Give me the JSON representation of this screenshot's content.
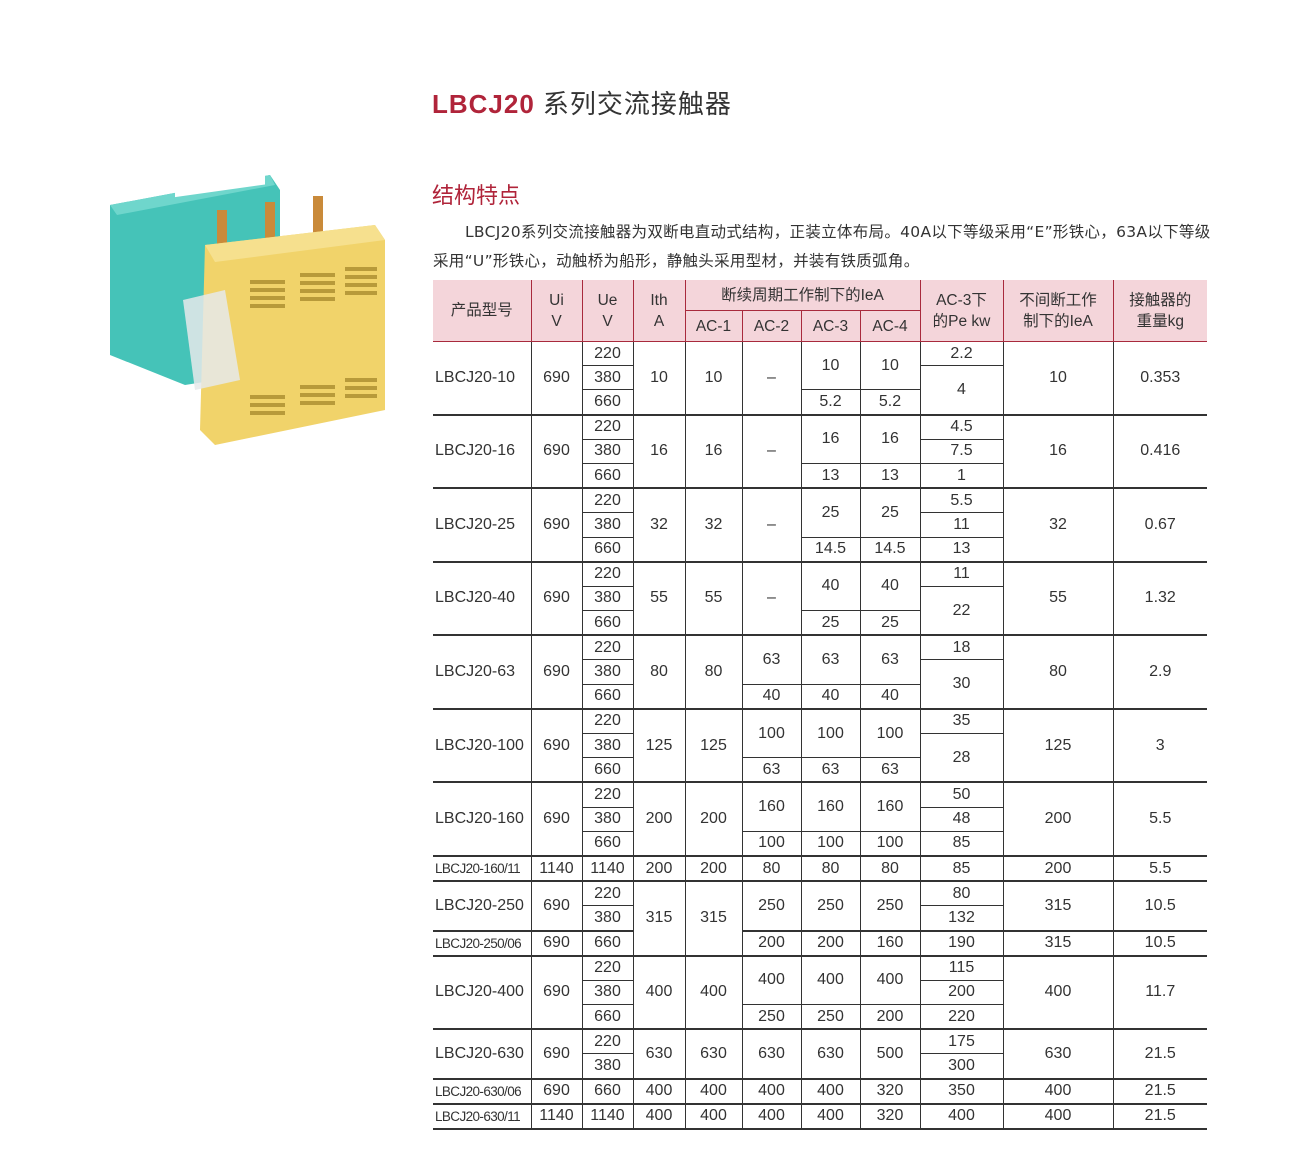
{
  "title": {
    "brand": "LBCJ20",
    "text": "系列交流接触器"
  },
  "section_title": "结构特点",
  "description": "LBCJ20系列交流接触器为双断电直动式结构，正装立体布局。40A以下等级采用“E”形铁心，63A以下等级采用“U”形铁心，动触桥为船形，静触头采用型材，并装有铁质弧角。",
  "colors": {
    "accent": "#b0243a",
    "header_bg": "#f4d5da"
  },
  "product_image": {
    "label": "LBCJ20 contactor photo",
    "colors": [
      "#45c3b8",
      "#f1d36a"
    ]
  },
  "table": {
    "headers": {
      "model": "产品型号",
      "ui": [
        "Ui",
        "V"
      ],
      "ue": [
        "Ue",
        "V"
      ],
      "ith": [
        "Ith",
        "A"
      ],
      "intermittent": "断续周期工作制下的IeA",
      "ac": [
        "AC-1",
        "AC-2",
        "AC-3",
        "AC-4"
      ],
      "pe": [
        "AC-3下",
        "的Pe kw"
      ],
      "continuous": [
        "不间断工作",
        "制下的IeA"
      ],
      "weight": [
        "接触器的",
        "重量kg"
      ]
    },
    "rows": [
      [
        [
          "LBCJ20-10",
          3,
          0
        ],
        [
          "690",
          3,
          1
        ],
        [
          "220",
          1,
          2
        ],
        [
          "10",
          3,
          3
        ],
        [
          "10",
          3,
          4
        ],
        [
          "–",
          3,
          5
        ],
        [
          "10",
          2,
          6
        ],
        [
          "10",
          2,
          7
        ],
        [
          "2.2",
          1,
          8
        ],
        [
          "10",
          3,
          9
        ],
        [
          "0.353",
          3,
          10
        ]
      ],
      [
        [
          "380",
          1,
          2
        ],
        [
          "4",
          2,
          8
        ]
      ],
      [
        [
          "660",
          1,
          2
        ],
        [
          "5.2",
          1,
          6
        ],
        [
          "5.2",
          1,
          7
        ]
      ],
      [
        [
          "LBCJ20-16",
          3,
          0
        ],
        [
          "690",
          3,
          1
        ],
        [
          "220",
          1,
          2
        ],
        [
          "16",
          3,
          3
        ],
        [
          "16",
          3,
          4
        ],
        [
          "–",
          3,
          5
        ],
        [
          "16",
          2,
          6
        ],
        [
          "16",
          2,
          7
        ],
        [
          "4.5",
          1,
          8
        ],
        [
          "16",
          3,
          9
        ],
        [
          "0.416",
          3,
          10
        ]
      ],
      [
        [
          "380",
          1,
          2
        ],
        [
          "7.5",
          1,
          8
        ]
      ],
      [
        [
          "660",
          1,
          2
        ],
        [
          "13",
          1,
          6
        ],
        [
          "13",
          1,
          7
        ],
        [
          "1",
          1,
          8
        ]
      ],
      [
        [
          "LBCJ20-25",
          3,
          0
        ],
        [
          "690",
          3,
          1
        ],
        [
          "220",
          1,
          2
        ],
        [
          "32",
          3,
          3
        ],
        [
          "32",
          3,
          4
        ],
        [
          "–",
          3,
          5
        ],
        [
          "25",
          2,
          6
        ],
        [
          "25",
          2,
          7
        ],
        [
          "5.5",
          1,
          8
        ],
        [
          "32",
          3,
          9
        ],
        [
          "0.67",
          3,
          10
        ]
      ],
      [
        [
          "380",
          1,
          2
        ],
        [
          "11",
          1,
          8
        ]
      ],
      [
        [
          "660",
          1,
          2
        ],
        [
          "14.5",
          1,
          6
        ],
        [
          "14.5",
          1,
          7
        ],
        [
          "13",
          1,
          8
        ]
      ],
      [
        [
          "LBCJ20-40",
          3,
          0
        ],
        [
          "690",
          3,
          1
        ],
        [
          "220",
          1,
          2
        ],
        [
          "55",
          3,
          3
        ],
        [
          "55",
          3,
          4
        ],
        [
          "–",
          3,
          5
        ],
        [
          "40",
          2,
          6
        ],
        [
          "40",
          2,
          7
        ],
        [
          "11",
          1,
          8
        ],
        [
          "55",
          3,
          9
        ],
        [
          "1.32",
          3,
          10
        ]
      ],
      [
        [
          "380",
          1,
          2
        ],
        [
          "22",
          2,
          8
        ]
      ],
      [
        [
          "660",
          1,
          2
        ],
        [
          "25",
          1,
          6
        ],
        [
          "25",
          1,
          7
        ]
      ],
      [
        [
          "LBCJ20-63",
          3,
          0
        ],
        [
          "690",
          3,
          1
        ],
        [
          "220",
          1,
          2
        ],
        [
          "80",
          3,
          3
        ],
        [
          "80",
          3,
          4
        ],
        [
          "63",
          2,
          5
        ],
        [
          "63",
          2,
          6
        ],
        [
          "63",
          2,
          7
        ],
        [
          "18",
          1,
          8
        ],
        [
          "80",
          3,
          9
        ],
        [
          "2.9",
          3,
          10
        ]
      ],
      [
        [
          "380",
          1,
          2
        ],
        [
          "30",
          2,
          8
        ]
      ],
      [
        [
          "660",
          1,
          2
        ],
        [
          "40",
          1,
          5
        ],
        [
          "40",
          1,
          6
        ],
        [
          "40",
          1,
          7
        ]
      ],
      [
        [
          "LBCJ20-100",
          3,
          0
        ],
        [
          "690",
          3,
          1
        ],
        [
          "220",
          1,
          2
        ],
        [
          "125",
          3,
          3
        ],
        [
          "125",
          3,
          4
        ],
        [
          "100",
          2,
          5
        ],
        [
          "100",
          2,
          6
        ],
        [
          "100",
          2,
          7
        ],
        [
          "35",
          1,
          8
        ],
        [
          "125",
          3,
          9
        ],
        [
          "3",
          3,
          10
        ]
      ],
      [
        [
          "380",
          1,
          2
        ],
        [
          "28",
          2,
          8
        ]
      ],
      [
        [
          "660",
          1,
          2
        ],
        [
          "63",
          1,
          5
        ],
        [
          "63",
          1,
          6
        ],
        [
          "63",
          1,
          7
        ]
      ],
      [
        [
          "LBCJ20-160",
          3,
          0
        ],
        [
          "690",
          3,
          1
        ],
        [
          "220",
          1,
          2
        ],
        [
          "200",
          3,
          3
        ],
        [
          "200",
          3,
          4
        ],
        [
          "160",
          2,
          5
        ],
        [
          "160",
          2,
          6
        ],
        [
          "160",
          2,
          7
        ],
        [
          "50",
          1,
          8
        ],
        [
          "200",
          3,
          9
        ],
        [
          "5.5",
          3,
          10
        ]
      ],
      [
        [
          "380",
          1,
          2
        ],
        [
          "48",
          1,
          8
        ]
      ],
      [
        [
          "660",
          1,
          2
        ],
        [
          "100",
          1,
          5
        ],
        [
          "100",
          1,
          6
        ],
        [
          "100",
          1,
          7
        ],
        [
          "85",
          1,
          8
        ]
      ],
      [
        [
          "LBCJ20-160/11",
          1,
          0
        ],
        [
          "1140",
          1,
          1
        ],
        [
          "1140",
          1,
          2
        ],
        [
          "200",
          1,
          3
        ],
        [
          "200",
          1,
          4
        ],
        [
          "80",
          1,
          5
        ],
        [
          "80",
          1,
          6
        ],
        [
          "80",
          1,
          7
        ],
        [
          "85",
          1,
          8
        ],
        [
          "200",
          1,
          9
        ],
        [
          "5.5",
          1,
          10
        ]
      ],
      [
        [
          "LBCJ20-250",
          2,
          0
        ],
        [
          "690",
          2,
          1
        ],
        [
          "220",
          1,
          2
        ],
        [
          "315",
          3,
          3
        ],
        [
          "315",
          3,
          4
        ],
        [
          "250",
          2,
          5
        ],
        [
          "250",
          2,
          6
        ],
        [
          "250",
          2,
          7
        ],
        [
          "80",
          1,
          8
        ],
        [
          "315",
          2,
          9
        ],
        [
          "10.5",
          2,
          10
        ]
      ],
      [
        [
          "380",
          1,
          2
        ],
        [
          "132",
          1,
          8
        ]
      ],
      [
        [
          "LBCJ20-250/06",
          1,
          0
        ],
        [
          "690",
          1,
          1
        ],
        [
          "660",
          1,
          2
        ],
        [
          "200",
          1,
          5
        ],
        [
          "200",
          1,
          6
        ],
        [
          "160",
          1,
          7
        ],
        [
          "190",
          1,
          8
        ],
        [
          "315",
          1,
          9
        ],
        [
          "10.5",
          1,
          10
        ]
      ],
      [
        [
          "LBCJ20-400",
          3,
          0
        ],
        [
          "690",
          3,
          1
        ],
        [
          "220",
          1,
          2
        ],
        [
          "400",
          3,
          3
        ],
        [
          "400",
          3,
          4
        ],
        [
          "400",
          2,
          5
        ],
        [
          "400",
          2,
          6
        ],
        [
          "400",
          2,
          7
        ],
        [
          "115",
          1,
          8
        ],
        [
          "400",
          3,
          9
        ],
        [
          "11.7",
          3,
          10
        ]
      ],
      [
        [
          "380",
          1,
          2
        ],
        [
          "200",
          1,
          8
        ]
      ],
      [
        [
          "660",
          1,
          2
        ],
        [
          "250",
          1,
          5
        ],
        [
          "250",
          1,
          6
        ],
        [
          "200",
          1,
          7
        ],
        [
          "220",
          1,
          8
        ]
      ],
      [
        [
          "LBCJ20-630",
          2,
          0
        ],
        [
          "690",
          2,
          1
        ],
        [
          "220",
          1,
          2
        ],
        [
          "630",
          2,
          3
        ],
        [
          "630",
          2,
          4
        ],
        [
          "630",
          2,
          5
        ],
        [
          "630",
          2,
          6
        ],
        [
          "500",
          2,
          7
        ],
        [
          "175",
          1,
          8
        ],
        [
          "630",
          2,
          9
        ],
        [
          "21.5",
          2,
          10
        ]
      ],
      [
        [
          "380",
          1,
          2
        ],
        [
          "300",
          1,
          8
        ]
      ],
      [
        [
          "LBCJ20-630/06",
          1,
          0
        ],
        [
          "690",
          1,
          1
        ],
        [
          "660",
          1,
          2
        ],
        [
          "400",
          1,
          3
        ],
        [
          "400",
          1,
          4
        ],
        [
          "400",
          1,
          5
        ],
        [
          "400",
          1,
          6
        ],
        [
          "320",
          1,
          7
        ],
        [
          "350",
          1,
          8
        ],
        [
          "400",
          1,
          9
        ],
        [
          "21.5",
          1,
          10
        ]
      ],
      [
        [
          "LBCJ20-630/11",
          1,
          0
        ],
        [
          "1140",
          1,
          1
        ],
        [
          "1140",
          1,
          2
        ],
        [
          "400",
          1,
          3
        ],
        [
          "400",
          1,
          4
        ],
        [
          "400",
          1,
          5
        ],
        [
          "400",
          1,
          6
        ],
        [
          "320",
          1,
          7
        ],
        [
          "400",
          1,
          8
        ],
        [
          "400",
          1,
          9
        ],
        [
          "21.5",
          1,
          10
        ]
      ]
    ]
  }
}
